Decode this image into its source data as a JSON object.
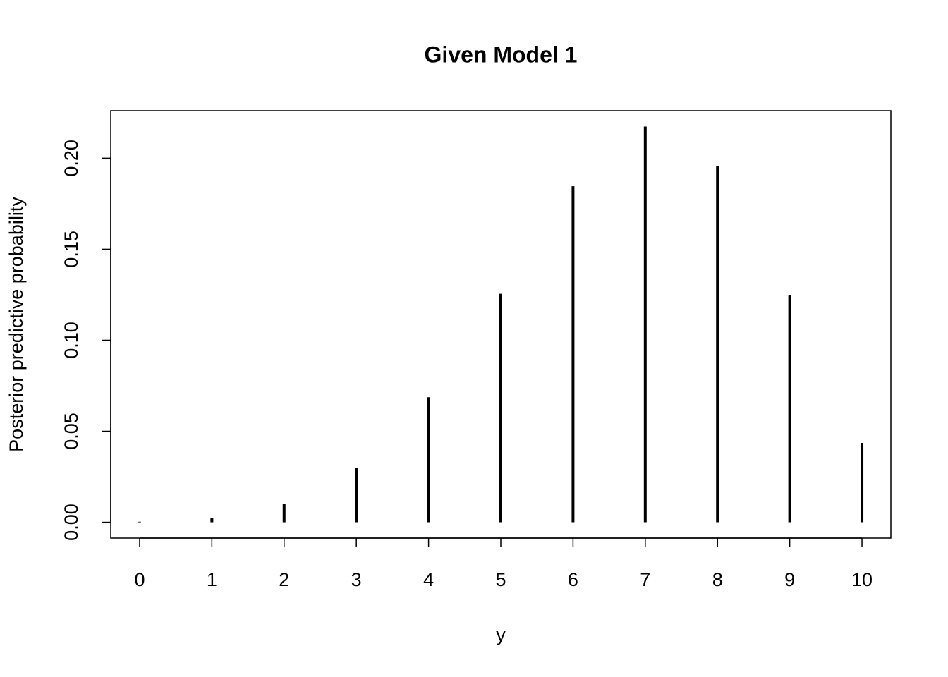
{
  "chart_data": {
    "type": "spike",
    "title": "Given Model 1",
    "x_label": "y",
    "y_label": "Posterior predictive probability",
    "x": [
      0,
      1,
      2,
      3,
      4,
      5,
      6,
      7,
      8,
      9,
      10
    ],
    "values": [
      0.0003,
      0.0023,
      0.01,
      0.03,
      0.0687,
      0.1255,
      0.1846,
      0.2174,
      0.1958,
      0.1247,
      0.0436
    ],
    "color": "#000000",
    "xlim": [
      -0.4,
      10.4
    ],
    "xticks": [
      0,
      1,
      2,
      3,
      4,
      5,
      6,
      7,
      8,
      9,
      10
    ],
    "ylim": [
      -0.0087,
      0.2261
    ],
    "yticks": [
      {
        "value": 0,
        "label": "0.00"
      },
      {
        "value": 0.05,
        "label": "0.05"
      },
      {
        "value": 0.1,
        "label": "0.10"
      },
      {
        "value": 0.15,
        "label": "0.15"
      },
      {
        "value": 0.2,
        "label": "0.20"
      }
    ],
    "grid": false
  }
}
